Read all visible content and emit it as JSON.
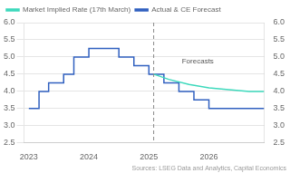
{
  "chart_data": {
    "type": "line",
    "series": [
      {
        "name": "Market Implied Rate (17th March)",
        "color": "#3dd9bc",
        "x": [
          2025.08,
          2025.33,
          2025.67,
          2026.0,
          2026.33,
          2026.67,
          2026.92
        ],
        "values": [
          4.5,
          4.35,
          4.2,
          4.1,
          4.05,
          4.0,
          4.0
        ]
      },
      {
        "name": "Actual & CE Forecast",
        "color": "#3060c0",
        "x": [
          2023.0,
          2023.0,
          2023.17,
          2023.17,
          2023.33,
          2023.33,
          2023.58,
          2023.58,
          2023.75,
          2023.75,
          2024.0,
          2024.0,
          2024.5,
          2024.5,
          2024.75,
          2024.75,
          2025.0,
          2025.0,
          2025.08,
          2025.08,
          2025.25,
          2025.25,
          2025.5,
          2025.5,
          2025.75,
          2025.75,
          2026.0,
          2026.0,
          2026.5,
          2026.5,
          2026.92
        ],
        "values": [
          3.5,
          3.5,
          3.5,
          4.0,
          4.0,
          4.25,
          4.25,
          4.5,
          4.5,
          5.0,
          5.0,
          5.25,
          5.25,
          5.0,
          5.0,
          4.75,
          4.75,
          4.5,
          4.5,
          4.5,
          4.5,
          4.25,
          4.25,
          4.0,
          4.0,
          3.75,
          3.75,
          3.5,
          3.5,
          3.5,
          3.5
        ]
      }
    ],
    "xlim": [
      2022.92,
      2026.92
    ],
    "xticks": [
      2023,
      2024,
      2025,
      2026
    ],
    "ylim": [
      2.5,
      6.0
    ],
    "yticks": [
      2.5,
      {
        "value": 3.0,
        "label": "3.0"
      },
      3.5,
      {
        "value": 4.0,
        "label": "4.0"
      },
      4.5,
      {
        "value": 5.0,
        "label": "5.0"
      },
      5.5,
      {
        "value": 6.0,
        "label": "6.0"
      }
    ],
    "y2lim": [
      2.5,
      6.0
    ],
    "y2ticks": [
      2.5,
      {
        "value": 3.0,
        "label": "3.0"
      },
      3.5,
      {
        "value": 4.0,
        "label": "4.0"
      },
      4.5,
      {
        "value": 5.0,
        "label": "5.0"
      },
      5.5,
      {
        "value": 6.0,
        "label": "6.0"
      }
    ],
    "annotations": [
      {
        "type": "vline",
        "x": 2025.08,
        "line_style": "dashed"
      },
      {
        "type": "text",
        "text": "Forecasts",
        "x": 2025.55,
        "y": 4.88
      }
    ],
    "source": "Sources: LSEG Data and Analytics, Capital Economics",
    "grid": "y",
    "legend": "upper left"
  }
}
